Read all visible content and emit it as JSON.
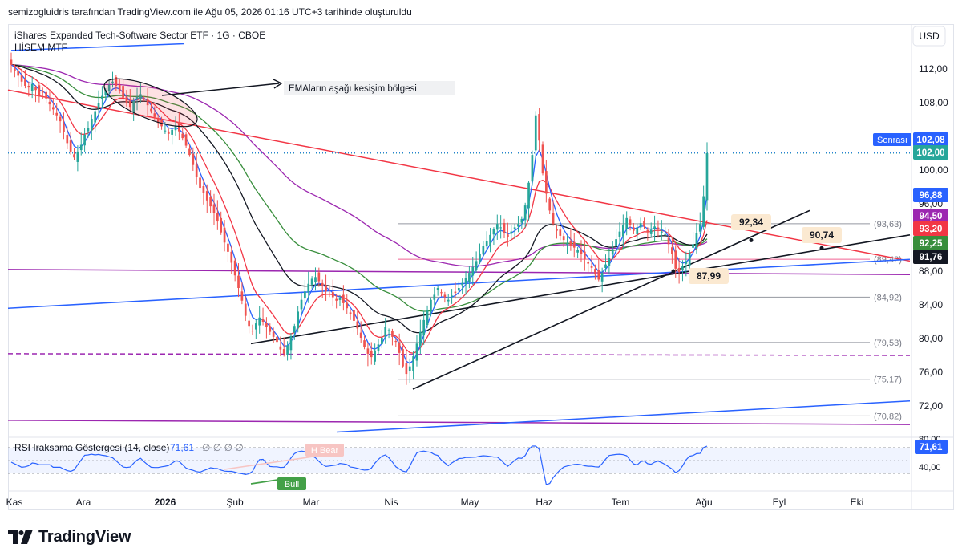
{
  "header": {
    "credit": "semizogluidris tarafından TradingView.com ile Ağu 05, 2026 01:16 UTC+3 tarihinde oluşturuldu"
  },
  "chart_info": {
    "symbol_line": "iShares Expanded Tech-Software Sector ETF · 1G · CBOE",
    "indicator_line": "HİSEM MTF",
    "currency": "USD"
  },
  "annotations": {
    "ema_note": "EMAların aşağı kesişim bölgesi",
    "price_tags": [
      "92,34",
      "90,74",
      "87,99"
    ],
    "rsi_bear": "H Bear",
    "rsi_bull": "Bull"
  },
  "rsi_panel": {
    "title": "RSI Iraksama Göstergesi (14, close)",
    "value": "71,61",
    "zeros": "∅ ∅ ∅ ∅",
    "tick_80": "80,00",
    "tick_40": "40,00",
    "value_badge": "71,61"
  },
  "footer": {
    "brand": "TradingView"
  },
  "colors": {
    "up": "#26a69a",
    "down": "#ef5350",
    "ema_fast": "#2962ff",
    "ema_red": "#f23645",
    "ema_green": "#388e3c",
    "ema_purple": "#9c27b0",
    "ema_black": "#131722"
  },
  "chart_data": {
    "type": "candlestick",
    "x_labels": [
      "Kas",
      "Ara",
      "2026",
      "Şub",
      "Mar",
      "Nis",
      "May",
      "Haz",
      "Tem",
      "Ağu",
      "Eyl",
      "Eki"
    ],
    "y_ticks": [
      "112,00",
      "108,00",
      "100,00",
      "96,00",
      "88,00",
      "84,00",
      "80,00",
      "76,00",
      "72,00"
    ],
    "ylim": [
      68.8,
      115
    ],
    "right_labels": [
      {
        "text": "Sonrası",
        "value": 102.08,
        "display": "102,08",
        "color": "#2962ff"
      },
      {
        "text": "",
        "value": 102.0,
        "display": "102,00",
        "color": "#26a69a"
      },
      {
        "text": "",
        "value": 96.88,
        "display": "96,88",
        "color": "#2962ff"
      },
      {
        "text": "",
        "value": 94.5,
        "display": "94,50",
        "color": "#9c27b0"
      },
      {
        "text": "",
        "value": 93.2,
        "display": "93,20",
        "color": "#f23645"
      },
      {
        "text": "",
        "value": 92.25,
        "display": "92,25",
        "color": "#388e3c"
      },
      {
        "text": "",
        "value": 91.76,
        "display": "91,76",
        "color": "#131722"
      }
    ],
    "fib_levels": [
      {
        "value": 93.63,
        "label": "(93,63)"
      },
      {
        "value": 89.42,
        "label": "(89,42)"
      },
      {
        "value": 84.92,
        "label": "(84,92)"
      },
      {
        "value": 79.53,
        "label": "(79,53)"
      },
      {
        "value": 75.17,
        "label": "(75,17)"
      },
      {
        "value": 70.82,
        "label": "(70,82)"
      }
    ],
    "closes": [
      112.5,
      111.8,
      111.2,
      110.5,
      110.0,
      109.8,
      110.2,
      109.5,
      108.8,
      109.2,
      108.5,
      107.8,
      107.2,
      106.5,
      105.8,
      104.5,
      103.2,
      102.2,
      101.5,
      102.2,
      103.0,
      104.2,
      105.0,
      106.1,
      107.0,
      108.0,
      108.8,
      109.5,
      110.1,
      110.5,
      110.0,
      109.4,
      108.6,
      107.9,
      107.5,
      108.2,
      108.7,
      109.0,
      108.4,
      107.7,
      107.0,
      106.3,
      105.6,
      105.2,
      104.7,
      104.3,
      104.8,
      105.2,
      104.6,
      103.8,
      102.9,
      101.8,
      100.6,
      99.2,
      97.9,
      97.3,
      96.4,
      95.7,
      94.9,
      93.9,
      92.6,
      91.4,
      90.3,
      89.0,
      87.5,
      86.0,
      84.5,
      82.7,
      81.5,
      80.9,
      81.8,
      82.5,
      82.0,
      81.4,
      80.8,
      80.2,
      79.6,
      78.7,
      78.2,
      79.2,
      80.3,
      81.5,
      83.2,
      84.6,
      85.6,
      86.5,
      87.1,
      87.3,
      86.8,
      86.2,
      85.6,
      85.3,
      84.9,
      84.5,
      84.8,
      84.2,
      83.6,
      82.9,
      82.1,
      81.2,
      80.1,
      79.0,
      78.2,
      77.8,
      78.6,
      79.3,
      80.1,
      81.4,
      81.0,
      80.2,
      79.6,
      78.3,
      76.7,
      75.8,
      76.7,
      77.9,
      79.4,
      80.8,
      82.2,
      83.4,
      84.6,
      85.2,
      86.0,
      85.4,
      84.9,
      84.6,
      85.1,
      85.4,
      86.0,
      86.6,
      87.2,
      87.8,
      88.5,
      89.2,
      90.1,
      91.0,
      91.6,
      92.3,
      93.0,
      93.6,
      93.2,
      92.5,
      92.0,
      92.7,
      93.2,
      93.6,
      94.2,
      95.8,
      98.5,
      101.8,
      106.5,
      103.5,
      99.6,
      97.2,
      95.2,
      93.6,
      92.8,
      92.2,
      91.7,
      91.3,
      91.0,
      90.8,
      90.5,
      90.0,
      89.4,
      88.9,
      88.4,
      87.6,
      87.0,
      87.8,
      88.8,
      89.6,
      90.6,
      91.8,
      92.7,
      93.5,
      94.3,
      93.5,
      92.8,
      93.2,
      93.7,
      93.3,
      92.6,
      92.9,
      93.3,
      93.0,
      92.7,
      92.4,
      91.2,
      90.0,
      88.3,
      87.9,
      88.6,
      89.2,
      90.2,
      91.2,
      92.5,
      93.6,
      96.9,
      102.0
    ]
  }
}
